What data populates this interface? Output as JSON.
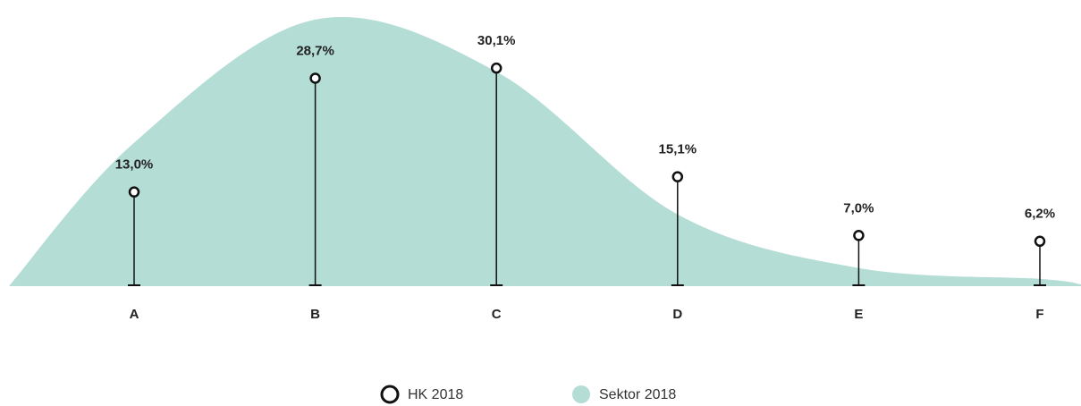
{
  "chart_data": {
    "type": "lollipop",
    "categories": [
      "A",
      "B",
      "C",
      "D",
      "E",
      "F"
    ],
    "series": [
      {
        "name": "HK 2018",
        "color": "#111111",
        "values": [
          13.0,
          28.7,
          30.1,
          15.1,
          7.0,
          6.2
        ],
        "value_labels": [
          "13,0%",
          "28,7%",
          "30,1%",
          "15,1%",
          "7,0%",
          "6,2%"
        ]
      },
      {
        "name": "Sektor 2018",
        "type": "area",
        "color": "#b3ddd5",
        "values": [
          19.8,
          36.8,
          29.6,
          9.9,
          2.5,
          1.0
        ]
      }
    ],
    "ylim": [
      0,
      39.5
    ]
  }
}
